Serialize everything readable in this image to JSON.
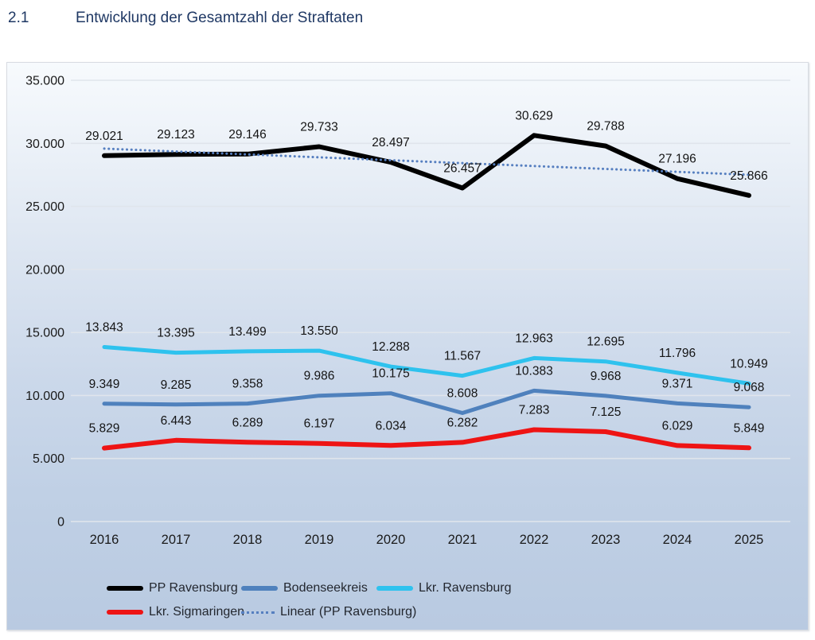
{
  "header": {
    "section": "2.1",
    "title": "Entwicklung der Gesamtzahl der Straftaten"
  },
  "chart_data": {
    "type": "line",
    "title": "Entwicklung der Gesamtzahl der Straftaten",
    "categories": [
      "2016",
      "2017",
      "2018",
      "2019",
      "2020",
      "2021",
      "2022",
      "2023",
      "2024",
      "2025"
    ],
    "series": [
      {
        "name": "PP Ravensburg",
        "color": "#000000",
        "width": 6,
        "values": [
          29021,
          29123,
          29146,
          29733,
          28497,
          26457,
          30629,
          29788,
          27196,
          25866
        ]
      },
      {
        "name": "Bodenseekreis",
        "color": "#4f81bd",
        "width": 5,
        "values": [
          9349,
          9285,
          9358,
          9986,
          10175,
          8608,
          10383,
          9968,
          9371,
          9068
        ]
      },
      {
        "name": "Lkr. Ravensburg",
        "color": "#2ec2ee",
        "width": 5,
        "values": [
          13843,
          13395,
          13499,
          13550,
          12288,
          11567,
          12963,
          12695,
          11796,
          10949
        ]
      },
      {
        "name": "Lkr. Sigmaringen",
        "color": "#ee1414",
        "width": 6,
        "values": [
          5829,
          6443,
          6289,
          6197,
          6034,
          6282,
          7283,
          7125,
          6029,
          5849
        ]
      }
    ],
    "trendline": {
      "name": "Linear (PP Ravensburg)",
      "color": "#567fc0",
      "style": "dotted",
      "basis_series": "PP Ravensburg"
    },
    "ylim": [
      0,
      35000
    ],
    "ytick_step": 5000,
    "ytick_labels": [
      "0",
      "5.000",
      "10.000",
      "15.000",
      "20.000",
      "25.000",
      "30.000",
      "35.000"
    ],
    "grid": true,
    "data_labels": true,
    "number_format": "de",
    "legend_position": "bottom",
    "colors": {
      "grid_line": "#e0e5ec",
      "axis_text": "#1a1a1a",
      "label_text": "#141414",
      "title_text": "#1f3864"
    }
  }
}
